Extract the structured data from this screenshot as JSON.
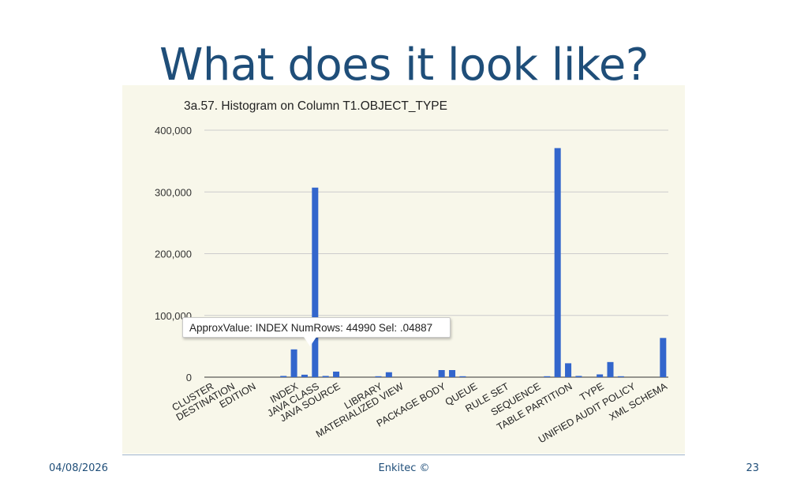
{
  "slide": {
    "title": "What does it look like?",
    "footer_date": "04/08/2026",
    "footer_center": "Enkitec ©",
    "page_number": "23"
  },
  "tooltip": {
    "text": "ApproxValue: INDEX NumRows: 44990 Sel: .04887"
  },
  "colors": {
    "bar": "#3366cc",
    "title": "#1f4e79",
    "panel_background": "#f8f7ea",
    "grid": "#cccccc"
  },
  "chart_data": {
    "type": "bar",
    "title": "3a.57. Histogram on Column T1.OBJECT_TYPE",
    "xlabel": "",
    "ylabel": "",
    "ylim": [
      0,
      400000
    ],
    "yticks": [
      0,
      100000,
      200000,
      300000,
      400000
    ],
    "ytick_labels": [
      "0",
      "100,000",
      "200,000",
      "300,000",
      "400,000"
    ],
    "grid": true,
    "legend": "none",
    "categories": [
      "CLUSTER",
      "",
      "DESTINATION",
      "",
      "EDITION",
      "",
      "",
      "",
      "INDEX",
      "",
      "JAVA CLASS",
      "",
      "JAVA SOURCE",
      "",
      "",
      "",
      "LIBRARY",
      "",
      "MATERIALIZED VIEW",
      "",
      "",
      "",
      "PACKAGE BODY",
      "",
      "",
      "QUEUE",
      "",
      "",
      "RULE SET",
      "",
      "",
      "SEQUENCE",
      "",
      "",
      "TABLE PARTITION",
      "",
      "",
      "TYPE",
      "",
      "",
      "UNIFIED AUDIT POLICY",
      "",
      "",
      "XML SCHEMA"
    ],
    "values": [
      0,
      0,
      0,
      0,
      0,
      0,
      0,
      2000,
      44990,
      4000,
      307000,
      2000,
      9000,
      0,
      0,
      0,
      1500,
      8000,
      0,
      0,
      0,
      0,
      11500,
      11500,
      1500,
      0,
      0,
      0,
      0,
      0,
      0,
      0,
      1500,
      371000,
      22500,
      2000,
      0,
      4500,
      24500,
      1500,
      0,
      0,
      0,
      63500
    ]
  }
}
